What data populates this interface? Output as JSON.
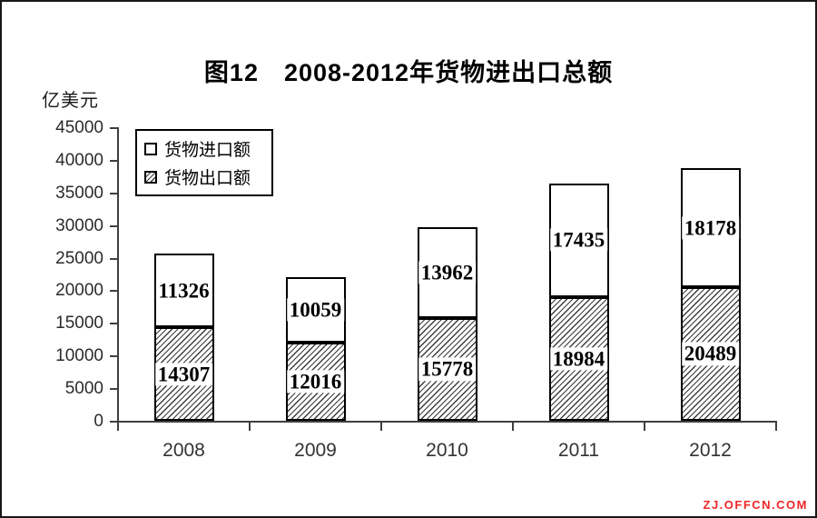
{
  "chart_data": {
    "type": "bar",
    "stacked": true,
    "title": "图12　2008-2012年货物进出口总额",
    "unit_label": "亿美元",
    "categories": [
      "2008",
      "2009",
      "2010",
      "2011",
      "2012"
    ],
    "series": [
      {
        "name": "货物出口额",
        "style": "hatch",
        "values": [
          14307,
          12016,
          15778,
          18984,
          20489
        ]
      },
      {
        "name": "货物进口额",
        "style": "plain",
        "values": [
          11326,
          10059,
          13962,
          17435,
          18178
        ]
      }
    ],
    "legend": [
      "货物进口额",
      "货物出口额"
    ],
    "legend_position": "upper-left-inside",
    "ylim": [
      0,
      45000
    ],
    "ytick_step": 5000,
    "yticks": [
      0,
      5000,
      10000,
      15000,
      20000,
      25000,
      30000,
      35000,
      40000,
      45000
    ],
    "grid": false
  },
  "watermark": "ZJ.OFFCN.COM",
  "colors": {
    "watermark": "#f02626",
    "axis": "#3f3f3f",
    "bar_border": "#000000",
    "bar_fill": "#ffffff"
  }
}
